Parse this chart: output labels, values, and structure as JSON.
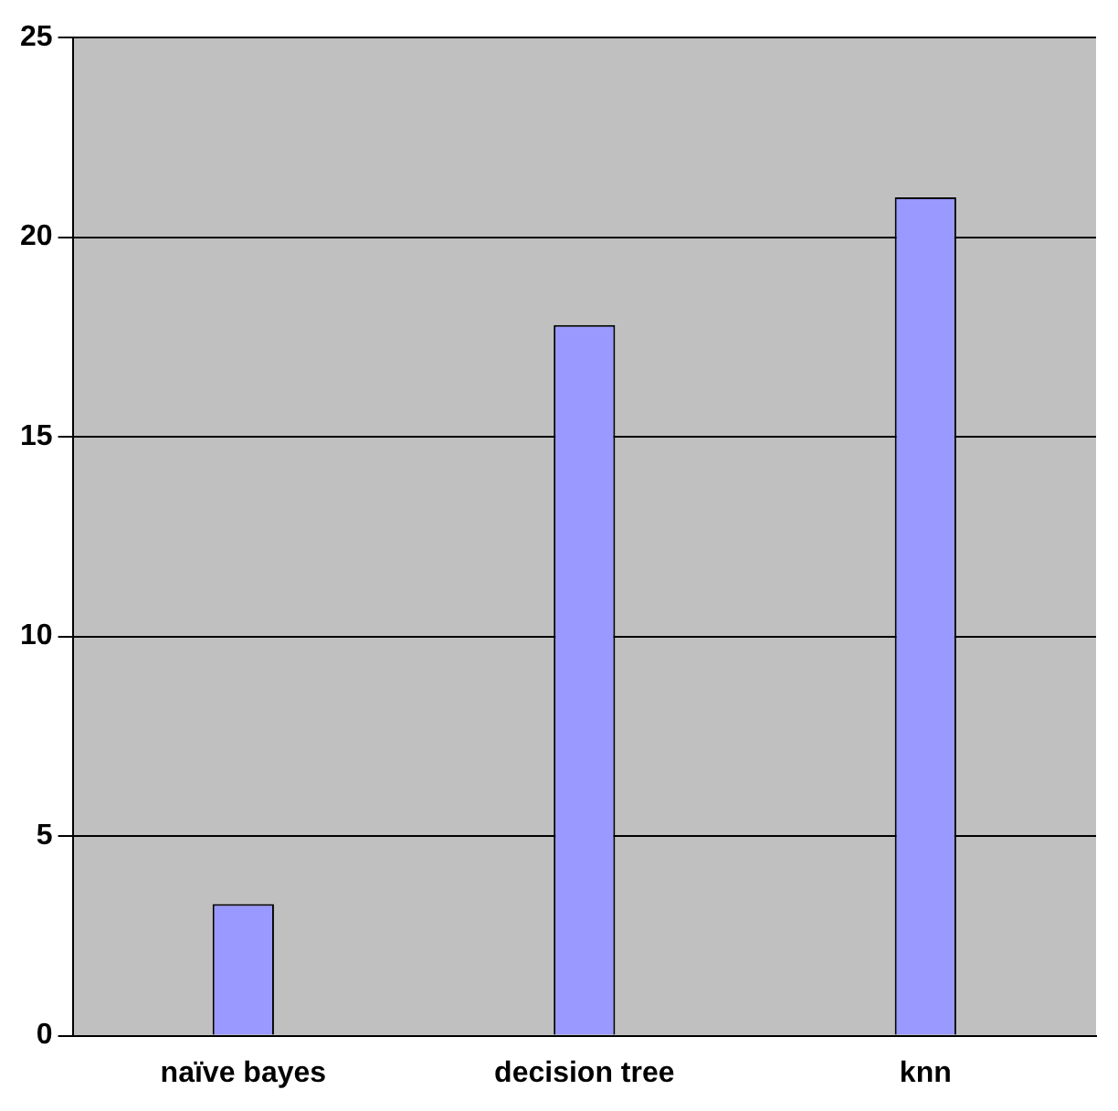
{
  "chart_data": {
    "type": "bar",
    "categories": [
      "naïve bayes",
      "decision tree",
      "knn"
    ],
    "values": [
      3.3,
      17.8,
      21.0
    ],
    "color": "#9999ff",
    "ylim": [
      0,
      25
    ],
    "yticks": [
      0,
      5,
      10,
      15,
      20,
      25
    ],
    "grid": "y"
  }
}
